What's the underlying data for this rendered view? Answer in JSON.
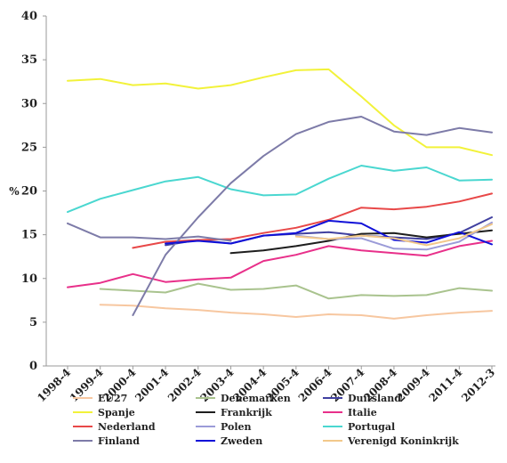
{
  "chart_data": {
    "type": "line",
    "title": "",
    "xlabel": "",
    "ylabel": "%",
    "ylim": [
      0,
      40
    ],
    "yticks": [
      "0",
      "5",
      "10",
      "15",
      "20",
      "25",
      "30",
      "35",
      "40"
    ],
    "categories": [
      "1998-4",
      "1999-4",
      "2000-4",
      "2001-4",
      "2002-4",
      "2003-4",
      "2004-4",
      "2005-4",
      "2006-4",
      "2007-4",
      "2008-4",
      "2009-4",
      "2011-4",
      "2012-3"
    ],
    "grid": false,
    "legend_position": "bottom",
    "series": [
      {
        "name": "EU27",
        "color": "#f7c7a0",
        "values": [
          null,
          7.0,
          6.9,
          6.6,
          6.4,
          6.1,
          5.9,
          5.6,
          5.9,
          5.8,
          5.4,
          5.8,
          6.1,
          6.3
        ]
      },
      {
        "name": "Denemarken",
        "color": "#a9c38e",
        "values": [
          null,
          8.8,
          8.6,
          8.4,
          9.4,
          8.7,
          8.8,
          9.2,
          7.7,
          8.1,
          8.0,
          8.1,
          8.9,
          8.6
        ]
      },
      {
        "name": "Duitsland",
        "color": "#4040a0",
        "values": [
          null,
          null,
          null,
          13.8,
          14.4,
          14.0,
          14.9,
          15.1,
          15.3,
          14.9,
          14.7,
          14.5,
          15.2,
          17.0
        ]
      },
      {
        "name": "Spanje",
        "color": "#f2f23a",
        "values": [
          32.6,
          32.8,
          32.1,
          32.3,
          31.7,
          32.1,
          33.0,
          33.8,
          33.9,
          30.8,
          27.5,
          25.0,
          25.0,
          24.1
        ]
      },
      {
        "name": "Frankrijk",
        "color": "#1e1e1e",
        "values": [
          null,
          null,
          null,
          null,
          null,
          12.9,
          13.2,
          13.7,
          14.3,
          15.1,
          15.2,
          14.7,
          15.1,
          15.5
        ]
      },
      {
        "name": "Italie",
        "color": "#e8308a",
        "values": [
          9.0,
          9.5,
          10.5,
          9.6,
          9.9,
          10.1,
          12.0,
          12.7,
          13.7,
          13.2,
          12.9,
          12.6,
          13.7,
          14.3
        ]
      },
      {
        "name": "Nederland",
        "color": "#e84848",
        "values": [
          null,
          null,
          13.5,
          14.2,
          14.4,
          14.5,
          15.2,
          15.8,
          16.7,
          18.1,
          17.9,
          18.2,
          18.8,
          19.7
        ]
      },
      {
        "name": "Polen",
        "color": "#9b9bd8",
        "values": [
          null,
          null,
          null,
          null,
          null,
          null,
          null,
          14.9,
          14.5,
          14.6,
          13.4,
          13.3,
          14.2,
          16.4
        ]
      },
      {
        "name": "Portugal",
        "color": "#4ad7d0",
        "values": [
          17.6,
          19.1,
          20.1,
          21.1,
          21.6,
          20.2,
          19.5,
          19.6,
          21.4,
          22.9,
          22.3,
          22.7,
          21.2,
          21.3
        ]
      },
      {
        "name": "Finland",
        "color": "#7d7ba8",
        "values": [
          16.3,
          14.7,
          14.7,
          14.5,
          14.8,
          14.3,
          null,
          null,
          null,
          null,
          null,
          null,
          null,
          null
        ]
      },
      {
        "name": "Finland",
        "color": "#7d7ba8",
        "values": [
          null,
          null,
          5.8,
          12.7,
          17.0,
          20.9,
          24.0,
          26.5,
          27.9,
          28.5,
          26.8,
          26.4,
          27.2,
          26.7
        ]
      },
      {
        "name": "Zweden",
        "color": "#1010d8",
        "values": [
          null,
          null,
          null,
          14.0,
          14.3,
          14.0,
          14.9,
          15.2,
          16.6,
          16.3,
          14.4,
          14.1,
          15.3,
          13.9
        ]
      },
      {
        "name": "Verenigd Koninkrijk",
        "color": "#f2c88a",
        "values": [
          null,
          null,
          null,
          null,
          null,
          null,
          null,
          14.8,
          14.5,
          14.9,
          14.6,
          13.8,
          14.6,
          16.2
        ]
      }
    ],
    "legend": [
      {
        "label": "EU27",
        "color": "#f7c7a0"
      },
      {
        "label": "Denemarken",
        "color": "#a9c38e"
      },
      {
        "label": "Duitsland",
        "color": "#4040a0"
      },
      {
        "label": "Spanje",
        "color": "#f2f23a"
      },
      {
        "label": "Frankrijk",
        "color": "#1e1e1e"
      },
      {
        "label": "Italie",
        "color": "#e8308a"
      },
      {
        "label": "Nederland",
        "color": "#e84848"
      },
      {
        "label": "Polen",
        "color": "#9b9bd8"
      },
      {
        "label": "Portugal",
        "color": "#4ad7d0"
      },
      {
        "label": "Finland",
        "color": "#7d7ba8"
      },
      {
        "label": "Zweden",
        "color": "#1010d8"
      },
      {
        "label": "Verenigd Koninkrijk",
        "color": "#f2c88a"
      }
    ]
  }
}
